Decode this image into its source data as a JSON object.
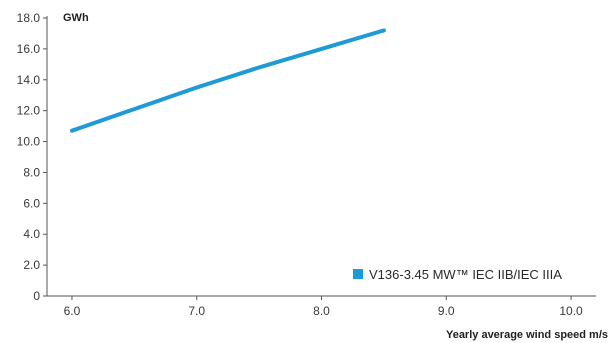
{
  "chart_data": {
    "type": "line",
    "title": "",
    "xlabel": "Yearly average wind speed m/s",
    "ylabel": "GWh",
    "xlim": [
      5.8,
      10.2
    ],
    "ylim": [
      0,
      18
    ],
    "x_ticks": [
      6.0,
      7.0,
      8.0,
      9.0,
      10.0
    ],
    "x_tick_labels": [
      "6.0",
      "7.0",
      "8.0",
      "9.0",
      "10.0"
    ],
    "y_ticks": [
      0,
      2,
      4,
      6,
      8,
      10,
      12,
      14,
      16,
      18
    ],
    "y_tick_labels": [
      "0",
      "2.0",
      "4.0",
      "6.0",
      "8.0",
      "10.0",
      "12.0",
      "14.0",
      "16.0",
      "18.0"
    ],
    "grid": false,
    "legend_position": "bottom-right",
    "series": [
      {
        "name": "V136-3.45 MW™ IEC IIB/IEC IIIA",
        "color": "#1e9ad6",
        "x": [
          6.0,
          6.5,
          7.0,
          7.5,
          8.0,
          8.5
        ],
        "y": [
          10.7,
          12.1,
          13.5,
          14.8,
          16.0,
          17.2
        ]
      }
    ]
  }
}
